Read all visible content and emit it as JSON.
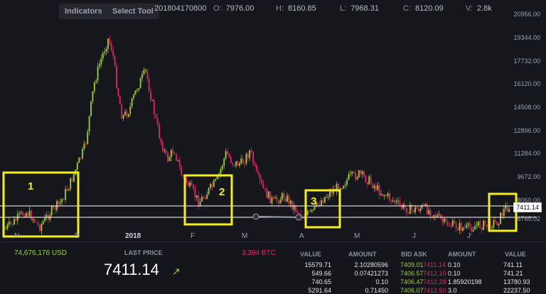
{
  "toolbar": {
    "indicators": "Indicators",
    "select_tool": "Select Tool"
  },
  "ohlc": {
    "timestamp": "201804170800",
    "o_label": "O:",
    "o": "7976.00",
    "h_label": "H:",
    "h": "8160.85",
    "l_label": "L:",
    "l": "7968.31",
    "c_label": "C:",
    "c": "8120.09",
    "v_label": "V:",
    "v": "2.8k"
  },
  "y_axis": [
    "20956.00",
    "19344.00",
    "17732.00",
    "16120.00",
    "14508.00",
    "12896.00",
    "11284.00",
    "9672.00",
    "8060.00",
    "6765.02"
  ],
  "price_tag": "7411.14",
  "x_axis": [
    "N",
    "D",
    "2018",
    "F",
    "M",
    "A",
    "M",
    "J",
    "J"
  ],
  "annotations": [
    "1",
    "2",
    "3"
  ],
  "colors": {
    "up": "#9bd32a",
    "down": "#e8206a",
    "highlight": "#f5ee1e",
    "background": "#16171d"
  },
  "bottom": {
    "volume_usd": "74,676,176 USD",
    "last_price_label": "LAST PRICE",
    "last_price": "7411.14",
    "btc_volume": "3,394 BTC",
    "headers": {
      "value": "VALUE",
      "amount": "AMOUNT",
      "bid_ask": "BID ASK",
      "amount2": "AMOUNT",
      "value2": "VALUE"
    },
    "rows": [
      {
        "value": "15579.71",
        "amount": "2.10280596",
        "bid": "7409.01",
        "ask": "7411.14",
        "amount2": "0.10",
        "value2": "741.11"
      },
      {
        "value": "549.66",
        "amount": "0.07421273",
        "bid": "7406.57",
        "ask": "7412.10",
        "amount2": "0.10",
        "value2": "741.21"
      },
      {
        "value": "740.65",
        "amount": "0.10",
        "bid": "7406.47",
        "ask": "7412.28",
        "amount2": "1.85920198",
        "value2": "13780.93"
      },
      {
        "value": "5291.64",
        "amount": "0.71450",
        "bid": "7406.07",
        "ask": "7412.50",
        "amount2": "3.0",
        "value2": "22237.50"
      }
    ]
  }
}
